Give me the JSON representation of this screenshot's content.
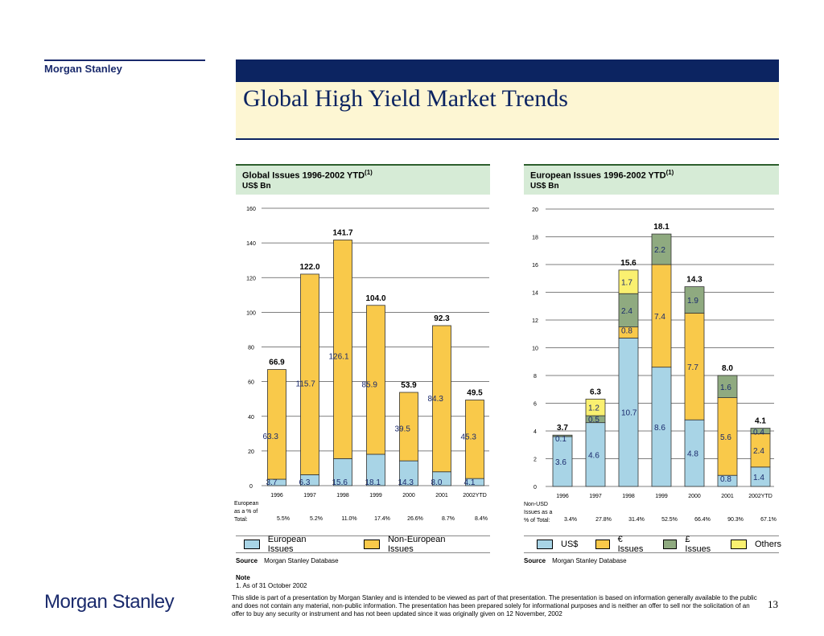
{
  "header": {
    "brand": "Morgan Stanley",
    "title": "Global High Yield Market Trends"
  },
  "panels": [
    {
      "title": "Global Issues 1996-2002 YTD",
      "sup": "(1)",
      "unit": "US$ Bn"
    },
    {
      "title": "European Issues 1996-2002 YTD",
      "sup": "(1)",
      "unit": "US$ Bn"
    }
  ],
  "chart_data": [
    {
      "type": "bar",
      "stacked": true,
      "categories": [
        "1996",
        "1997",
        "1998",
        "1999",
        "2000",
        "2001",
        "2002YTD"
      ],
      "series": [
        {
          "name": "European Issues",
          "color": "#a8d4e6",
          "values": [
            3.7,
            6.3,
            15.6,
            18.1,
            14.3,
            8.0,
            4.1
          ]
        },
        {
          "name": "Non-European Issues",
          "color": "#f9c94a",
          "values": [
            63.3,
            115.7,
            126.1,
            85.9,
            39.5,
            84.3,
            45.3
          ]
        }
      ],
      "totals": [
        66.9,
        122.0,
        141.7,
        104.0,
        53.9,
        92.3,
        49.5
      ],
      "ylim": [
        0,
        160
      ],
      "yticks": [
        "0",
        "20",
        "40",
        "60",
        "80",
        "100",
        "120",
        "140",
        "160"
      ],
      "row_label": [
        "European",
        "as a % of",
        "Total:"
      ],
      "row_values": [
        "5.5%",
        "5.2%",
        "11.0%",
        "17.4%",
        "26.6%",
        "8.7%",
        "8.4%"
      ],
      "source": "Morgan Stanley Database"
    },
    {
      "type": "bar",
      "stacked": true,
      "categories": [
        "1996",
        "1997",
        "1998",
        "1999",
        "2000",
        "2001",
        "2002YTD"
      ],
      "series": [
        {
          "name": "US$",
          "color": "#a8d4e6",
          "values": [
            3.6,
            4.6,
            10.7,
            8.6,
            4.8,
            0.8,
            1.4
          ]
        },
        {
          "name": "€ Issues",
          "color": "#f9c94a",
          "values": [
            0,
            0,
            0.8,
            7.4,
            7.7,
            5.6,
            2.4
          ]
        },
        {
          "name": "£ Issues",
          "color": "#8faa80",
          "values": [
            0.1,
            0.5,
            2.4,
            2.2,
            1.9,
            1.6,
            0.4
          ]
        },
        {
          "name": "Others",
          "color": "#faf070",
          "values": [
            0,
            1.2,
            1.7,
            0,
            0,
            0,
            0
          ]
        }
      ],
      "seg_labels": [
        [
          "3.6",
          "4.6",
          "10.7",
          "8.6",
          "4.8",
          "0.8",
          "1.4"
        ],
        [
          "",
          "",
          "0.8",
          "7.4",
          "7.7",
          "5.6",
          "2.4"
        ],
        [
          "0.1",
          "0.5",
          "2.4",
          "2.2",
          "1.9",
          "1.6",
          "0.4"
        ],
        [
          "",
          "1.2",
          "1.7",
          "",
          "",
          "",
          ""
        ]
      ],
      "totals": [
        3.7,
        6.3,
        15.6,
        18.1,
        14.3,
        8.0,
        4.1
      ],
      "ylim": [
        0,
        20
      ],
      "yticks": [
        "0",
        "2",
        "4",
        "6",
        "8",
        "10",
        "12",
        "14",
        "16",
        "18",
        "20"
      ],
      "row_label": [
        "Non-USD",
        "Issues as a",
        "% of Total:"
      ],
      "row_values": [
        "3.4%",
        "27.8%",
        "31.4%",
        "52.5%",
        "66.4%",
        "90.3%",
        "67.1%"
      ],
      "source": "Morgan Stanley Database"
    }
  ],
  "source_label": "Source",
  "note": {
    "label": "Note",
    "text": "1.  As of 31 October 2002"
  },
  "disclaimer": "This slide is part of a presentation by Morgan Stanley and is intended to be viewed as part of that presentation.  The presentation is based on information generally available to the public and does not contain any material, non-public information.  The presentation has been prepared solely for informational purposes and is neither an offer to sell nor the solicitation of an offer to buy any security or instrument and has not been updated since it was originally given on 12 November, 2002",
  "page_number": "13",
  "footer_logo": "Morgan Stanley"
}
